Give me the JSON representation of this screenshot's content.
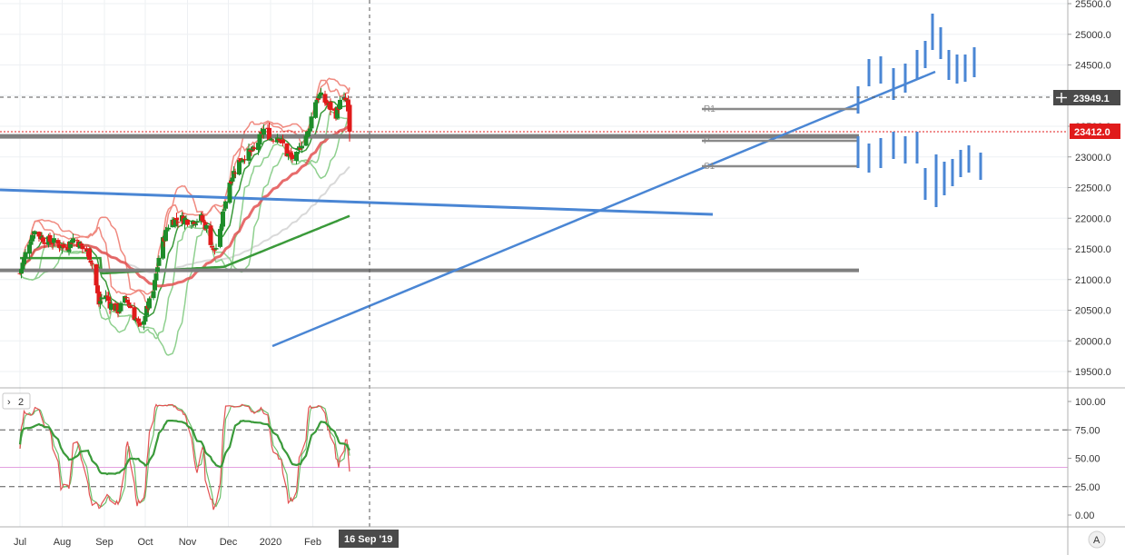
{
  "chart_data": {
    "type": "candlestick",
    "x_axis": {
      "labels": [
        "Jul",
        "Aug",
        "Sep",
        "Oct",
        "Nov",
        "Dec",
        "2020",
        "Feb"
      ],
      "crosshair_label": "16 Sep '19"
    },
    "price_axis": {
      "range": [
        19200,
        25600
      ],
      "ticks": [
        "25500.0",
        "25000.0",
        "24500.0",
        "24000.0",
        "23500.0",
        "23000.0",
        "22500.0",
        "22000.0",
        "21500.0",
        "21000.0",
        "20500.0",
        "20000.0",
        "19500.0"
      ],
      "crosshair_price": "23949.1",
      "last_price": "23412.0"
    },
    "pivot_labels": [
      "R1",
      "P",
      "S1"
    ],
    "indicator": {
      "label": "2",
      "range": [
        -10,
        110
      ],
      "ticks": [
        "100.00",
        "75.00",
        "50.00",
        "25.00",
        "0.00"
      ],
      "levels": [
        75,
        25
      ],
      "midline": 42
    },
    "candles": [],
    "colors": {
      "up": "#1e8c2a",
      "down": "#e01b1b",
      "trend": "#4a86d4",
      "horizontal": "#7f7f7f",
      "bb_red": "#f08a80",
      "bb_green": "#8fd08f",
      "ma_red": "#e35252",
      "ma_green": "#3a9a3a",
      "ma_gray": "#d9d9d9",
      "k_line": "#e35252",
      "d_line": "#6cc06c",
      "rsi": "#3a9a3a",
      "tag_dark": "#4a4a4a",
      "tag_red": "#e01b1b"
    }
  }
}
